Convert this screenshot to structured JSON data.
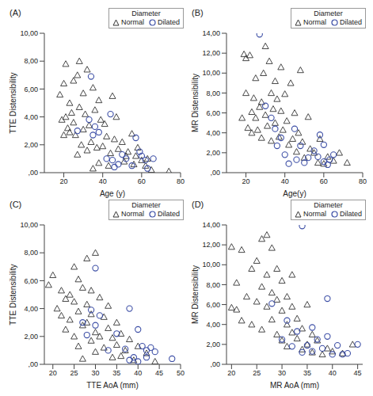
{
  "chart_data": [
    {
      "type": "scatter",
      "title": "(A)",
      "x_label": "Age (y)",
      "y_label": "TTE Distensibility",
      "legend": "upper right",
      "legend_title": "Diameter",
      "grid": false,
      "xlim": [
        10,
        80
      ],
      "xticks": [
        20,
        40,
        60,
        80
      ],
      "ylim": [
        0,
        10
      ],
      "yticks": [
        {
          "value": 0,
          "label": ",00"
        },
        {
          "value": 2,
          "label": "2,00"
        },
        {
          "value": 4,
          "label": "4,00"
        },
        {
          "value": 6,
          "label": "6,00"
        },
        {
          "value": 8,
          "label": "8,00"
        },
        {
          "value": 10,
          "label": "10,00"
        }
      ],
      "series": [
        {
          "name": "Normal",
          "color": "#333333",
          "marker": "triangle",
          "x": [
            18,
            19,
            20,
            20,
            21,
            21,
            22,
            23,
            23,
            24,
            25,
            25,
            26,
            27,
            27,
            28,
            28,
            29,
            30,
            30,
            31,
            32,
            32,
            33,
            34,
            35,
            35,
            36,
            37,
            38,
            38,
            39,
            40,
            41,
            42,
            43,
            44,
            45,
            46,
            47,
            48,
            50,
            51,
            52,
            53,
            55,
            56,
            57,
            58,
            60,
            62,
            63,
            65,
            74
          ],
          "values": [
            5.6,
            3.8,
            6.4,
            2.7,
            7.8,
            4,
            3.2,
            5,
            2.9,
            4.3,
            3.6,
            6.6,
            2.7,
            7,
            1.3,
            8,
            4.7,
            2,
            5.7,
            3.1,
            4.2,
            1.6,
            7.4,
            3.4,
            2.2,
            6.1,
            0.3,
            4.5,
            1.8,
            5.2,
            0.7,
            3.8,
            1.9,
            3.5,
            2.6,
            0.5,
            1.4,
            5.5,
            2.4,
            4,
            1.7,
            2.2,
            0.8,
            1.2,
            1.5,
            2.8,
            0.6,
            1.2,
            1.8,
            0.9,
            0.5,
            1,
            0.2,
            0.1
          ]
        },
        {
          "name": "Dilated",
          "color": "#3d4fa6",
          "marker": "circle",
          "x": [
            27,
            33,
            34,
            35,
            36,
            38,
            42,
            44,
            45,
            46,
            48,
            50,
            52,
            55,
            57,
            59,
            60,
            62,
            63,
            66
          ],
          "values": [
            3,
            3.8,
            6.9,
            2.7,
            3.3,
            2.9,
            1,
            4.2,
            0.9,
            0.4,
            0.6,
            1.3,
            1,
            0.5,
            2.5,
            1.5,
            1.2,
            0.9,
            0.3,
            1
          ]
        }
      ]
    },
    {
      "type": "scatter",
      "title": "(B)",
      "x_label": "Age(y)",
      "y_label": "MR Distensibility",
      "legend": "upper right",
      "legend_title": "Diameter",
      "grid": false,
      "xlim": [
        10,
        80
      ],
      "xticks": [
        20,
        40,
        60,
        80
      ],
      "ylim": [
        0,
        14
      ],
      "yticks": [
        {
          "value": 0,
          "label": ",00"
        },
        {
          "value": 2,
          "label": "2,00"
        },
        {
          "value": 4,
          "label": "4,00"
        },
        {
          "value": 6,
          "label": "6,00"
        },
        {
          "value": 8,
          "label": "8,00"
        },
        {
          "value": 10,
          "label": "10,00"
        },
        {
          "value": 12,
          "label": "12,00"
        },
        {
          "value": 14,
          "label": "14,00"
        }
      ],
      "series": [
        {
          "name": "Normal",
          "color": "#333333",
          "marker": "triangle",
          "x": [
            18,
            19,
            20,
            20,
            21,
            22,
            23,
            23,
            24,
            25,
            25,
            26,
            27,
            28,
            28,
            29,
            30,
            30,
            31,
            32,
            33,
            33,
            34,
            35,
            35,
            36,
            37,
            38,
            38,
            39,
            40,
            41,
            42,
            43,
            44,
            45,
            46,
            47,
            48,
            49,
            50,
            52,
            53,
            55,
            57,
            58,
            60,
            62,
            65,
            68,
            72
          ],
          "values": [
            5.5,
            11.9,
            11.5,
            8,
            4.5,
            11.8,
            6.1,
            4,
            7.5,
            9.5,
            5.5,
            4.3,
            6.6,
            7.1,
            3.5,
            10,
            5.8,
            12.7,
            4.7,
            11.2,
            8,
            3.2,
            6.4,
            9.2,
            5,
            7.4,
            3.6,
            10.6,
            6.2,
            4.3,
            7.9,
            5.2,
            2.8,
            9,
            3.4,
            6,
            2.1,
            4,
            10.3,
            3.1,
            1.5,
            5.6,
            2.4,
            2,
            1,
            3.4,
            0.9,
            1.6,
            1.2,
            2,
            1
          ]
        },
        {
          "name": "Dilated",
          "color": "#3d4fa6",
          "marker": "circle",
          "x": [
            27,
            30,
            33,
            35,
            36,
            38,
            40,
            42,
            45,
            46,
            48,
            50,
            52,
            55,
            57,
            58,
            60,
            60,
            62,
            63,
            65
          ],
          "values": [
            13.9,
            6.7,
            5.5,
            4.4,
            2.7,
            3.5,
            1.8,
            0.9,
            4.4,
            1.3,
            2.7,
            1,
            1.5,
            2.2,
            1.6,
            3.8,
            1.1,
            2.8,
            0.8,
            1.3,
            1.8
          ]
        }
      ]
    },
    {
      "type": "scatter",
      "title": "(C)",
      "x_label": "TTE AoA (mm)",
      "y_label": "TTE Distensibility",
      "legend": "upper right",
      "legend_title": "Diameter",
      "grid": false,
      "xlim": [
        18,
        50
      ],
      "xticks": [
        20,
        25,
        30,
        35,
        40,
        45,
        50
      ],
      "ylim": [
        0,
        10
      ],
      "yticks": [
        {
          "value": 0,
          "label": ",00"
        },
        {
          "value": 2,
          "label": "2,00"
        },
        {
          "value": 4,
          "label": "4,00"
        },
        {
          "value": 6,
          "label": "6,00"
        },
        {
          "value": 8,
          "label": "8,00"
        },
        {
          "value": 10,
          "label": "10,00"
        }
      ],
      "series": [
        {
          "name": "Normal",
          "color": "#333333",
          "marker": "triangle",
          "x": [
            19,
            20,
            21,
            22,
            22,
            23,
            23,
            24,
            24,
            25,
            25,
            25,
            26,
            26,
            26,
            27,
            27,
            27,
            28,
            28,
            28,
            29,
            29,
            29,
            30,
            30,
            30,
            31,
            31,
            32,
            32,
            33,
            33,
            34,
            34,
            35,
            35,
            36,
            36,
            37,
            38,
            39,
            40,
            42,
            44
          ],
          "values": [
            5.7,
            6.4,
            4,
            3.5,
            5.3,
            4.7,
            2.5,
            5,
            3.2,
            4.5,
            7,
            2,
            6.1,
            3.8,
            1.3,
            5.5,
            2.8,
            0.4,
            4.3,
            3,
            7.6,
            1.7,
            5.3,
            3.6,
            2.3,
            8,
            0.9,
            4.8,
            2,
            3.4,
            1.2,
            2.6,
            4.2,
            1.9,
            0.5,
            3,
            1.4,
            0.6,
            2.2,
            1,
            1.8,
            0.3,
            1.3,
            0.8,
            0.2
          ]
        },
        {
          "name": "Dilated",
          "color": "#3d4fa6",
          "marker": "circle",
          "x": [
            27,
            28,
            29,
            30,
            30,
            31,
            33,
            35,
            37,
            38,
            38,
            39,
            40,
            40,
            41,
            42,
            42,
            43,
            44,
            48
          ],
          "values": [
            3,
            2.1,
            3.9,
            2.8,
            6.9,
            3.5,
            1,
            2.2,
            1.1,
            4,
            0.3,
            0.5,
            2.5,
            0.2,
            1.3,
            1,
            0.5,
            1.2,
            0.9,
            0.4
          ]
        }
      ]
    },
    {
      "type": "scatter",
      "title": "(D)",
      "x_label": "MR AoA (mm)",
      "y_label": "MR Distensibility",
      "legend": "upper right",
      "legend_title": "Diameter",
      "grid": false,
      "xlim": [
        19,
        46
      ],
      "xticks": [
        20,
        25,
        30,
        35,
        40,
        45
      ],
      "ylim": [
        0,
        14
      ],
      "yticks": [
        {
          "value": 0,
          "label": ",00"
        },
        {
          "value": 2,
          "label": "2,00"
        },
        {
          "value": 4,
          "label": "4,00"
        },
        {
          "value": 6,
          "label": "6,00"
        },
        {
          "value": 8,
          "label": "8,00"
        },
        {
          "value": 10,
          "label": "10,00"
        },
        {
          "value": 12,
          "label": "12,00"
        },
        {
          "value": 14,
          "label": "14,00"
        }
      ],
      "series": [
        {
          "name": "Normal",
          "color": "#333333",
          "marker": "triangle",
          "x": [
            20,
            20,
            21,
            21,
            22,
            22,
            23,
            24,
            24,
            25,
            25,
            26,
            26,
            26,
            27,
            27,
            27,
            28,
            28,
            28,
            29,
            29,
            29,
            30,
            30,
            30,
            31,
            31,
            31,
            32,
            32,
            32,
            33,
            33,
            34,
            34,
            35,
            35,
            36,
            36,
            37,
            38,
            39,
            40,
            42,
            44
          ],
          "values": [
            11.8,
            5.7,
            8.2,
            5.5,
            11.5,
            4.4,
            6.8,
            9.6,
            4,
            10.4,
            6.3,
            12.6,
            7.8,
            3.5,
            13,
            5.8,
            9,
            4.5,
            7.2,
            11.7,
            6.5,
            3,
            9.6,
            5.4,
            2.4,
            8.4,
            4,
            6.8,
            1.8,
            3.2,
            5.8,
            9,
            2.6,
            4.6,
            1.5,
            3.6,
            2,
            6,
            1.2,
            3,
            2.4,
            1,
            1.6,
            1.3,
            1.1,
            2
          ]
        },
        {
          "name": "Dilated",
          "color": "#3d4fa6",
          "marker": "circle",
          "x": [
            28,
            30,
            31,
            32,
            33,
            34,
            34,
            35,
            36,
            36,
            37,
            38,
            39,
            39,
            40,
            41,
            42,
            43,
            45
          ],
          "values": [
            6.1,
            2.5,
            4.4,
            1.8,
            3.3,
            13.9,
            1.2,
            1.9,
            3.7,
            1.3,
            2.5,
            1.6,
            6.6,
            2.8,
            1,
            1.9,
            1,
            1.1,
            2
          ]
        }
      ]
    }
  ]
}
